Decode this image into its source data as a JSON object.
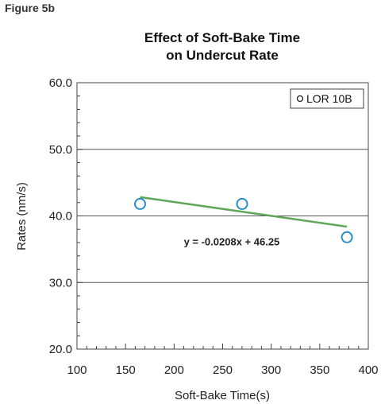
{
  "figure_label": "Figure 5b",
  "chart_data": {
    "type": "scatter",
    "title_line1": "Effect of Soft-Bake Time",
    "title_line2": "on Undercut Rate",
    "xlabel": "Soft-Bake Time(s)",
    "ylabel": "Rates (nm/s)",
    "xlim": [
      100,
      400
    ],
    "ylim": [
      20,
      60
    ],
    "x_ticks": [
      100,
      150,
      200,
      250,
      300,
      350,
      400
    ],
    "y_ticks": [
      20,
      30,
      40,
      50,
      60
    ],
    "y_tick_labels": [
      "20.0",
      "30.0",
      "40.0",
      "50.0",
      "60.0"
    ],
    "grid_y": true,
    "legend_position": "top-right",
    "series": [
      {
        "name": "LOR 10B",
        "marker": "open-circle",
        "color": "#2a8fc8",
        "x": [
          165,
          270,
          378
        ],
        "y": [
          41.8,
          41.8,
          36.8
        ]
      }
    ],
    "trendline": {
      "label": "y = -0.0208x + 46.25",
      "slope": -0.0208,
      "intercept": 46.25,
      "x_range": [
        165,
        378
      ],
      "color": "#5fa85a"
    }
  }
}
